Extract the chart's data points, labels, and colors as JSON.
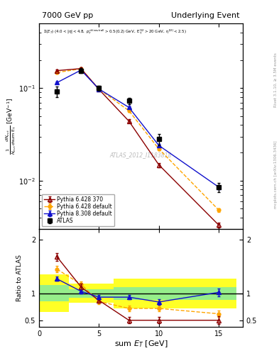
{
  "title_left": "7000 GeV pp",
  "title_right": "Underlying Event",
  "ylabel_main": "$\\frac{1}{N_{evt}}\\frac{dN_{evt}}{d\\rm{sum}\\ E_T}$ [GeV$^{-1}$]",
  "ylabel_ratio": "Ratio to ATLAS",
  "xlabel": "sum $E_T$ [GeV]",
  "rivet_label": "Rivet 3.1.10, ≥ 3.5M events",
  "mcplots_label": "mcplots.cern.ch [arXiv:1306.3436]",
  "watermark": "ATLAS_2012_I1183818",
  "atlas_x": [
    1.5,
    3.5,
    5.0,
    7.5,
    10.0,
    15.0
  ],
  "atlas_y": [
    0.092,
    0.155,
    0.1,
    0.073,
    0.028,
    0.0085
  ],
  "atlas_yerr": [
    0.012,
    0.01,
    0.007,
    0.006,
    0.004,
    0.001
  ],
  "py6_370_x": [
    1.5,
    3.5,
    5.0,
    7.5,
    10.0,
    15.0
  ],
  "py6_370_y": [
    0.155,
    0.163,
    0.097,
    0.044,
    0.0148,
    0.0033
  ],
  "py6_370_yerr": [
    0.004,
    0.004,
    0.003,
    0.002,
    0.0008,
    0.0002
  ],
  "py6_def_x": [
    1.5,
    3.5,
    5.0,
    7.5,
    10.0,
    15.0
  ],
  "py6_def_y": [
    0.148,
    0.162,
    0.098,
    0.057,
    0.022,
    0.0048
  ],
  "py6_def_yerr": [
    0.004,
    0.004,
    0.003,
    0.002,
    0.0008,
    0.0002
  ],
  "py8_def_x": [
    1.5,
    3.5,
    5.0,
    7.5,
    10.0,
    15.0
  ],
  "py8_def_y": [
    0.115,
    0.157,
    0.098,
    0.062,
    0.024,
    0.0085
  ],
  "py8_def_yerr": [
    0.003,
    0.003,
    0.002,
    0.002,
    0.0008,
    0.0003
  ],
  "ratio_py6_370_x": [
    1.5,
    3.5,
    5.0,
    7.5,
    10.0,
    15.0
  ],
  "ratio_py6_370_y": [
    1.68,
    1.12,
    0.87,
    0.5,
    0.5,
    0.5
  ],
  "ratio_py6_370_yerr": [
    0.07,
    0.06,
    0.05,
    0.06,
    0.06,
    0.07
  ],
  "ratio_py6_def_x": [
    1.5,
    3.5,
    5.0,
    7.5,
    10.0,
    15.0
  ],
  "ratio_py6_def_y": [
    1.45,
    1.17,
    0.85,
    0.72,
    0.72,
    0.62
  ],
  "ratio_py6_def_yerr": [
    0.06,
    0.05,
    0.05,
    0.05,
    0.05,
    0.06
  ],
  "ratio_py8_def_x": [
    1.5,
    3.5,
    5.0,
    7.5,
    10.0,
    15.0
  ],
  "ratio_py8_def_y": [
    1.27,
    1.04,
    0.93,
    0.93,
    0.84,
    1.02
  ],
  "ratio_py8_def_yerr": [
    0.04,
    0.04,
    0.04,
    0.04,
    0.05,
    0.07
  ],
  "band_edges": [
    0.0,
    2.5,
    4.25,
    6.25,
    8.75,
    12.5,
    16.5
  ],
  "band_green": [
    0.15,
    0.08,
    0.08,
    0.12,
    0.12,
    0.12
  ],
  "band_yellow": [
    0.35,
    0.18,
    0.18,
    0.28,
    0.28,
    0.28
  ],
  "color_atlas": "#000000",
  "color_py6_370": "#8B0000",
  "color_py6_def": "#FFA500",
  "color_py8_def": "#1111CC",
  "xlim": [
    0,
    17
  ],
  "ylim_main": [
    0.003,
    0.5
  ],
  "ylim_ratio": [
    0.38,
    2.2
  ],
  "xticks": [
    0,
    5,
    10,
    15
  ],
  "yticks_ratio": [
    0.5,
    1.0,
    2.0
  ]
}
